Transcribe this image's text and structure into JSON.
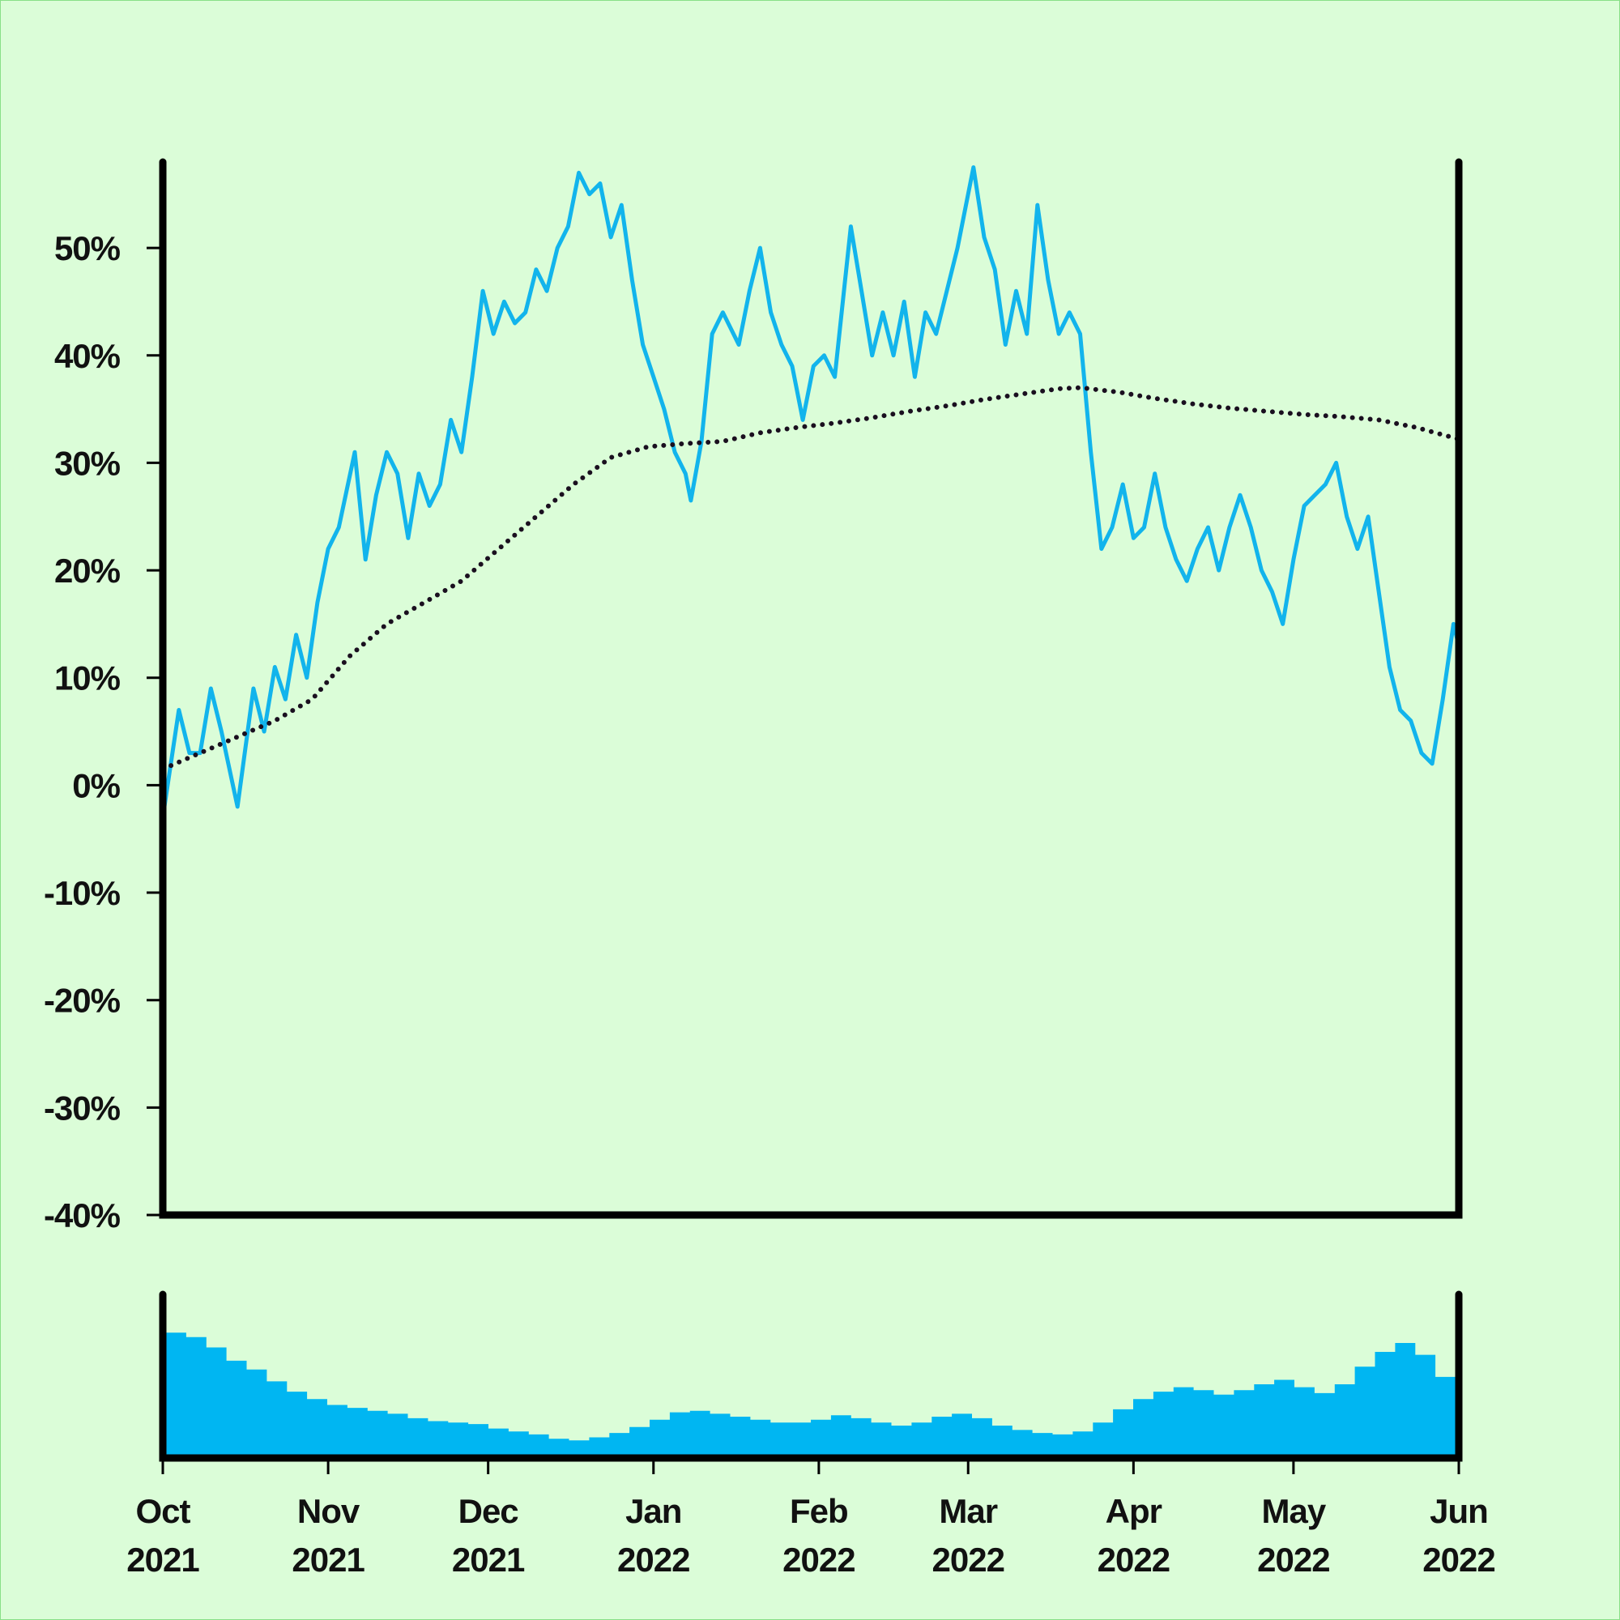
{
  "chart_data": {
    "type": "line",
    "title": "",
    "xlabel": "",
    "ylabel": "",
    "x_range": [
      "2021-10-01",
      "2022-06-01"
    ],
    "ylim": [
      -40,
      58
    ],
    "y_unit": "%",
    "y_ticks": [
      -40,
      -30,
      -20,
      -10,
      0,
      10,
      20,
      30,
      40,
      50
    ],
    "y_tick_labels": [
      "-40%",
      "-30%",
      "-20%",
      "-10%",
      "0%",
      "10%",
      "20%",
      "30%",
      "40%",
      "50%"
    ],
    "x_ticks": [
      "2021-10-01",
      "2021-11-01",
      "2021-12-01",
      "2022-01-01",
      "2022-02-01",
      "2022-03-01",
      "2022-04-01",
      "2022-05-01",
      "2022-06-01"
    ],
    "x_tick_labels": [
      {
        "month": "Oct",
        "year": "2021"
      },
      {
        "month": "Nov",
        "year": "2021"
      },
      {
        "month": "Dec",
        "year": "2021"
      },
      {
        "month": "Jan",
        "year": "2022"
      },
      {
        "month": "Feb",
        "year": "2022"
      },
      {
        "month": "Mar",
        "year": "2022"
      },
      {
        "month": "Apr",
        "year": "2022"
      },
      {
        "month": "May",
        "year": "2022"
      },
      {
        "month": "Jun",
        "year": "2022"
      }
    ],
    "grid": false,
    "background_color": "#dbfdd8",
    "series": [
      {
        "style": "solid",
        "color": "#12b4ec",
        "points": [
          [
            "2021-10-01",
            -3
          ],
          [
            "2021-10-04",
            7
          ],
          [
            "2021-10-06",
            3
          ],
          [
            "2021-10-08",
            3
          ],
          [
            "2021-10-10",
            9
          ],
          [
            "2021-10-12",
            5
          ],
          [
            "2021-10-15",
            -2
          ],
          [
            "2021-10-18",
            9
          ],
          [
            "2021-10-20",
            5
          ],
          [
            "2021-10-22",
            11
          ],
          [
            "2021-10-24",
            8
          ],
          [
            "2021-10-26",
            14
          ],
          [
            "2021-10-28",
            10
          ],
          [
            "2021-10-30",
            17
          ],
          [
            "2021-11-01",
            22
          ],
          [
            "2021-11-03",
            24
          ],
          [
            "2021-11-06",
            31
          ],
          [
            "2021-11-08",
            21
          ],
          [
            "2021-11-10",
            27
          ],
          [
            "2021-11-12",
            31
          ],
          [
            "2021-11-14",
            29
          ],
          [
            "2021-11-16",
            23
          ],
          [
            "2021-11-18",
            29
          ],
          [
            "2021-11-20",
            26
          ],
          [
            "2021-11-22",
            28
          ],
          [
            "2021-11-24",
            34
          ],
          [
            "2021-11-26",
            31
          ],
          [
            "2021-11-28",
            38
          ],
          [
            "2021-11-30",
            46
          ],
          [
            "2021-12-02",
            42
          ],
          [
            "2021-12-04",
            45
          ],
          [
            "2021-12-06",
            43
          ],
          [
            "2021-12-08",
            44
          ],
          [
            "2021-12-10",
            48
          ],
          [
            "2021-12-12",
            46
          ],
          [
            "2021-12-14",
            50
          ],
          [
            "2021-12-16",
            52
          ],
          [
            "2021-12-18",
            57
          ],
          [
            "2021-12-20",
            55
          ],
          [
            "2021-12-22",
            56
          ],
          [
            "2021-12-24",
            51
          ],
          [
            "2021-12-26",
            54
          ],
          [
            "2021-12-28",
            47
          ],
          [
            "2021-12-30",
            41
          ],
          [
            "2022-01-01",
            38
          ],
          [
            "2022-01-03",
            35
          ],
          [
            "2022-01-05",
            31
          ],
          [
            "2022-01-07",
            29
          ],
          [
            "2022-01-08",
            26.5
          ],
          [
            "2022-01-10",
            32
          ],
          [
            "2022-01-12",
            42
          ],
          [
            "2022-01-14",
            44
          ],
          [
            "2022-01-17",
            41
          ],
          [
            "2022-01-19",
            46
          ],
          [
            "2022-01-21",
            50
          ],
          [
            "2022-01-23",
            44
          ],
          [
            "2022-01-25",
            41
          ],
          [
            "2022-01-27",
            39
          ],
          [
            "2022-01-29",
            34
          ],
          [
            "2022-01-31",
            39
          ],
          [
            "2022-02-02",
            40
          ],
          [
            "2022-02-04",
            38
          ],
          [
            "2022-02-07",
            52
          ],
          [
            "2022-02-09",
            46
          ],
          [
            "2022-02-11",
            40
          ],
          [
            "2022-02-13",
            44
          ],
          [
            "2022-02-15",
            40
          ],
          [
            "2022-02-17",
            45
          ],
          [
            "2022-02-19",
            38
          ],
          [
            "2022-02-21",
            44
          ],
          [
            "2022-02-23",
            42
          ],
          [
            "2022-02-25",
            46
          ],
          [
            "2022-02-27",
            50
          ],
          [
            "2022-03-01",
            55
          ],
          [
            "2022-03-02",
            57.5
          ],
          [
            "2022-03-04",
            51
          ],
          [
            "2022-03-06",
            48
          ],
          [
            "2022-03-08",
            41
          ],
          [
            "2022-03-10",
            46
          ],
          [
            "2022-03-12",
            42
          ],
          [
            "2022-03-14",
            54
          ],
          [
            "2022-03-16",
            47
          ],
          [
            "2022-03-18",
            42
          ],
          [
            "2022-03-20",
            44
          ],
          [
            "2022-03-22",
            42
          ],
          [
            "2022-03-24",
            31
          ],
          [
            "2022-03-26",
            22
          ],
          [
            "2022-03-28",
            24
          ],
          [
            "2022-03-30",
            28
          ],
          [
            "2022-04-01",
            23
          ],
          [
            "2022-04-03",
            24
          ],
          [
            "2022-04-05",
            29
          ],
          [
            "2022-04-07",
            24
          ],
          [
            "2022-04-09",
            21
          ],
          [
            "2022-04-11",
            19
          ],
          [
            "2022-04-13",
            22
          ],
          [
            "2022-04-15",
            24
          ],
          [
            "2022-04-17",
            20
          ],
          [
            "2022-04-19",
            24
          ],
          [
            "2022-04-21",
            27
          ],
          [
            "2022-04-23",
            24
          ],
          [
            "2022-04-25",
            20
          ],
          [
            "2022-04-27",
            18
          ],
          [
            "2022-04-29",
            15
          ],
          [
            "2022-05-01",
            21
          ],
          [
            "2022-05-03",
            26
          ],
          [
            "2022-05-05",
            27
          ],
          [
            "2022-05-07",
            28
          ],
          [
            "2022-05-09",
            30
          ],
          [
            "2022-05-11",
            25
          ],
          [
            "2022-05-13",
            22
          ],
          [
            "2022-05-15",
            25
          ],
          [
            "2022-05-17",
            18
          ],
          [
            "2022-05-19",
            11
          ],
          [
            "2022-05-21",
            7
          ],
          [
            "2022-05-23",
            6
          ],
          [
            "2022-05-25",
            3
          ],
          [
            "2022-05-27",
            2
          ],
          [
            "2022-05-29",
            8
          ],
          [
            "2022-05-31",
            15
          ],
          [
            "2022-06-01",
            13
          ]
        ]
      },
      {
        "style": "dotted",
        "color": "#1a0f1f",
        "points": [
          [
            "2021-10-01",
            1.5
          ],
          [
            "2021-10-08",
            3
          ],
          [
            "2021-10-15",
            4.5
          ],
          [
            "2021-10-22",
            6
          ],
          [
            "2021-10-29",
            8
          ],
          [
            "2021-11-05",
            12
          ],
          [
            "2021-11-12",
            15
          ],
          [
            "2021-11-19",
            17
          ],
          [
            "2021-11-26",
            19
          ],
          [
            "2021-12-03",
            22
          ],
          [
            "2021-12-10",
            25
          ],
          [
            "2021-12-17",
            28
          ],
          [
            "2021-12-24",
            30.5
          ],
          [
            "2021-12-31",
            31.5
          ],
          [
            "2022-01-07",
            31.8
          ],
          [
            "2022-01-14",
            32
          ],
          [
            "2022-01-21",
            32.8
          ],
          [
            "2022-01-28",
            33.3
          ],
          [
            "2022-02-04",
            33.7
          ],
          [
            "2022-02-11",
            34.2
          ],
          [
            "2022-02-18",
            34.8
          ],
          [
            "2022-02-25",
            35.3
          ],
          [
            "2022-03-04",
            35.9
          ],
          [
            "2022-03-11",
            36.4
          ],
          [
            "2022-03-18",
            36.9
          ],
          [
            "2022-03-22",
            37
          ],
          [
            "2022-03-29",
            36.6
          ],
          [
            "2022-04-05",
            36
          ],
          [
            "2022-04-12",
            35.5
          ],
          [
            "2022-04-19",
            35.1
          ],
          [
            "2022-04-26",
            34.8
          ],
          [
            "2022-05-03",
            34.5
          ],
          [
            "2022-05-10",
            34.3
          ],
          [
            "2022-05-17",
            34
          ],
          [
            "2022-05-24",
            33.3
          ],
          [
            "2022-06-01",
            32.2
          ]
        ]
      }
    ],
    "volume": {
      "type": "bar",
      "color": "#00b6f2",
      "values": [
        0.85,
        0.82,
        0.75,
        0.66,
        0.6,
        0.52,
        0.45,
        0.4,
        0.36,
        0.34,
        0.32,
        0.3,
        0.27,
        0.25,
        0.24,
        0.23,
        0.2,
        0.18,
        0.16,
        0.13,
        0.12,
        0.14,
        0.17,
        0.21,
        0.26,
        0.31,
        0.32,
        0.3,
        0.28,
        0.26,
        0.24,
        0.24,
        0.26,
        0.29,
        0.27,
        0.24,
        0.22,
        0.24,
        0.28,
        0.3,
        0.27,
        0.22,
        0.19,
        0.17,
        0.16,
        0.18,
        0.24,
        0.33,
        0.4,
        0.45,
        0.48,
        0.46,
        0.43,
        0.46,
        0.5,
        0.53,
        0.48,
        0.44,
        0.5,
        0.62,
        0.72,
        0.78,
        0.7,
        0.55
      ]
    }
  }
}
